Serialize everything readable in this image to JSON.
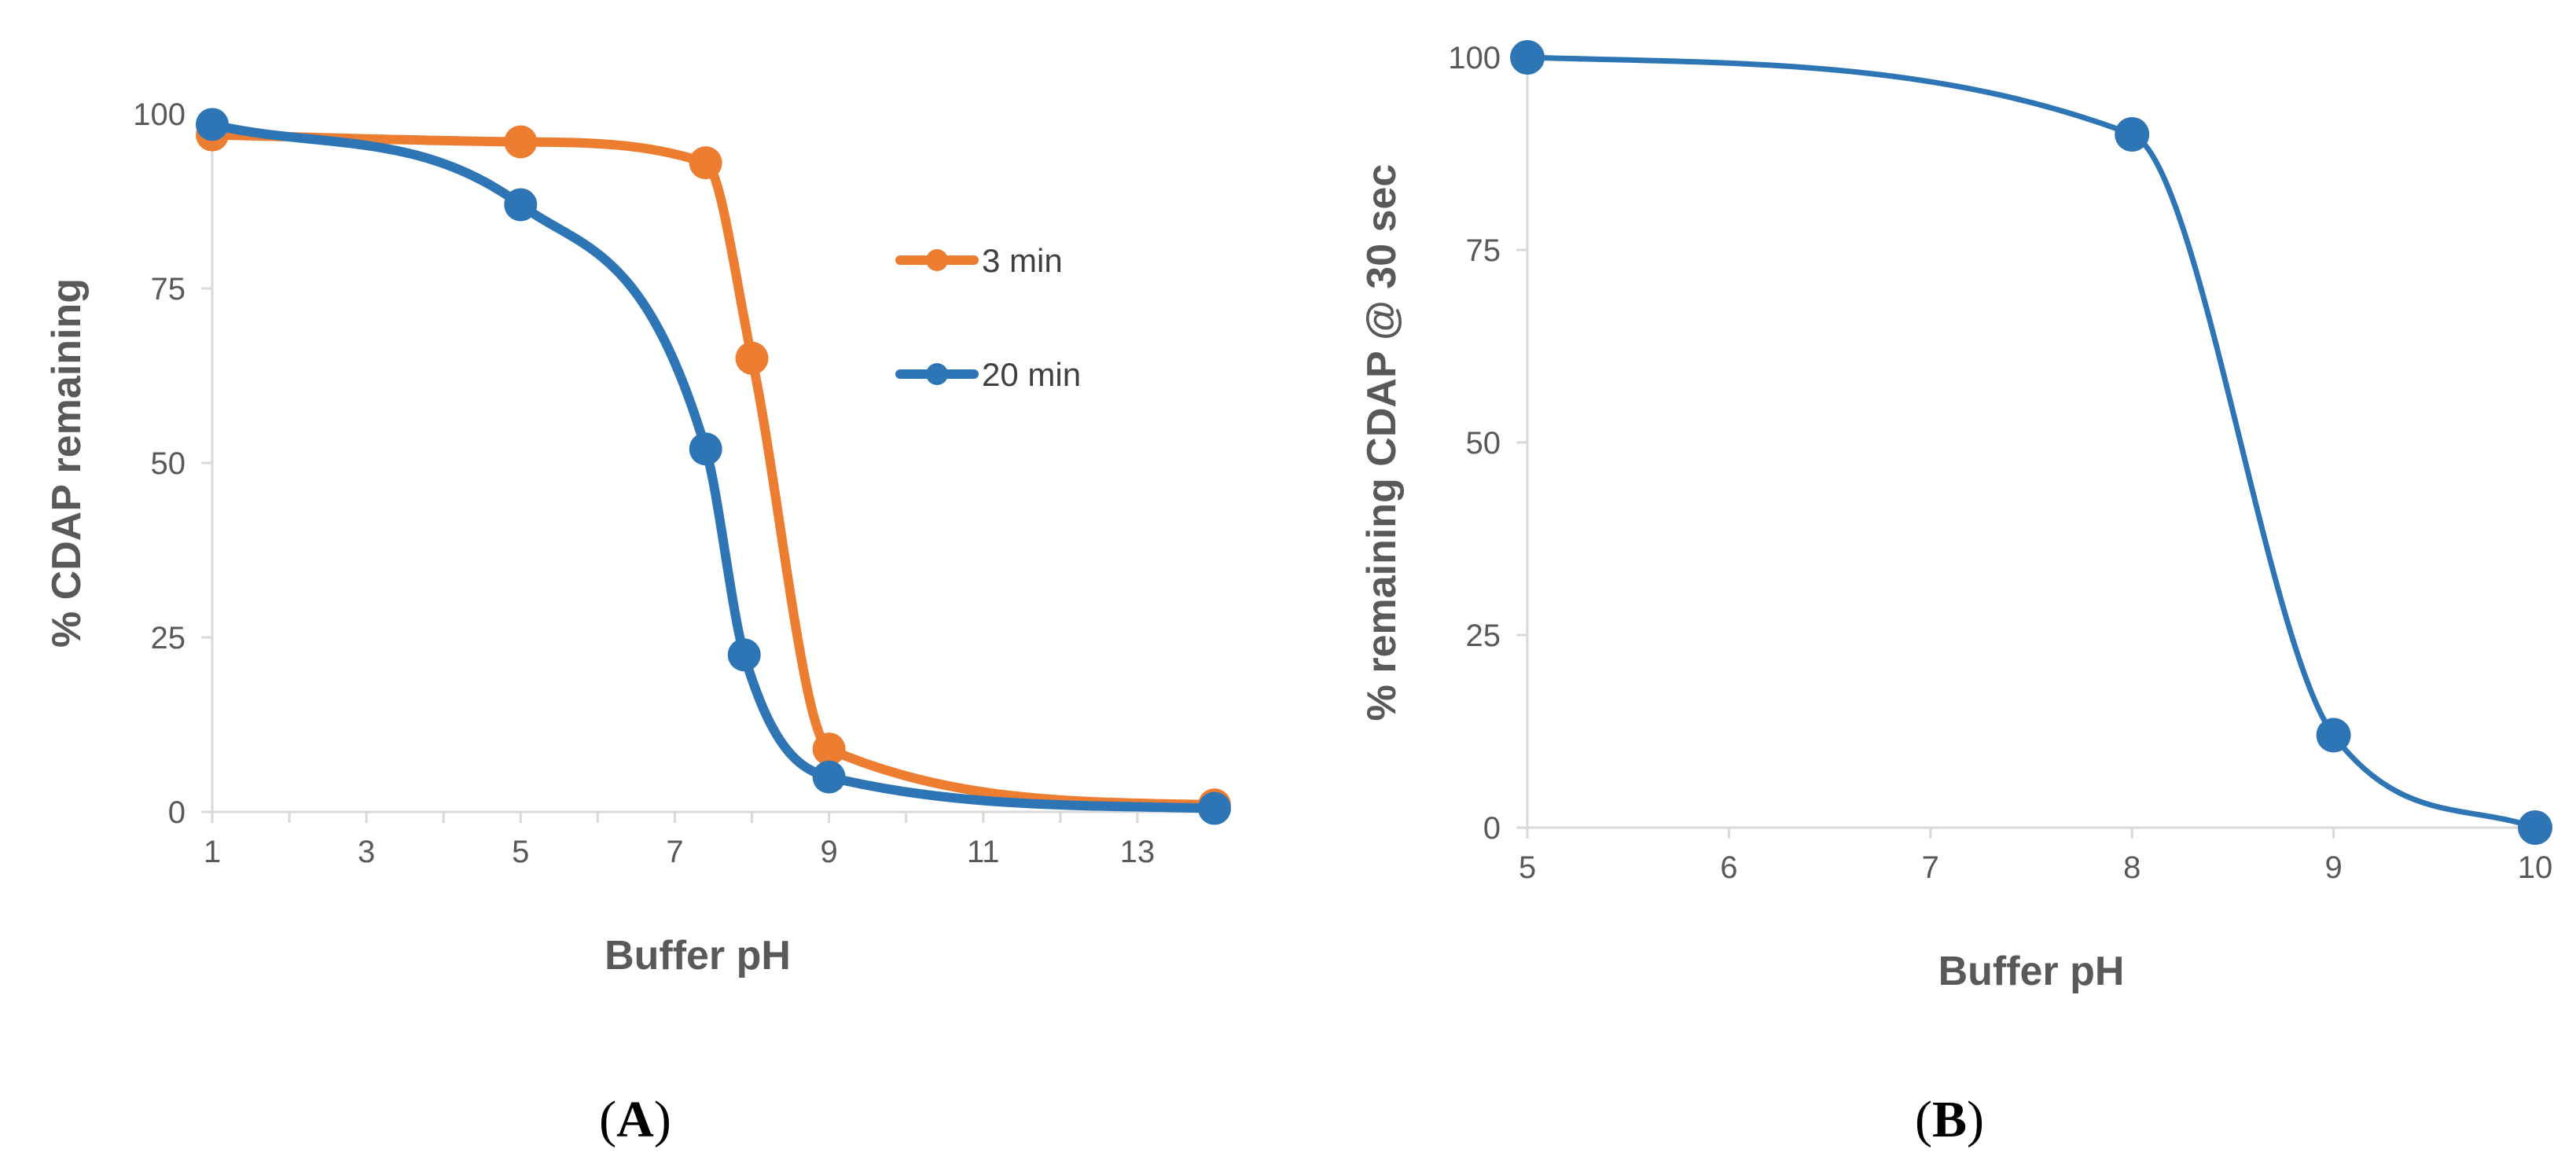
{
  "chart_data": [
    {
      "type": "line",
      "panel_label": "A",
      "xlabel": "Buffer pH",
      "ylabel": "% CDAP remaining",
      "xlim": [
        1,
        14
      ],
      "ylim": [
        0,
        100
      ],
      "xticks": [
        1,
        3,
        5,
        7,
        9,
        11,
        13
      ],
      "yticks": [
        0,
        25,
        50,
        75,
        100
      ],
      "grid": false,
      "legend_position": "right",
      "series": [
        {
          "name": "3 min",
          "color": "#ed7d31",
          "x": [
            1,
            5,
            7.4,
            8,
            9,
            14
          ],
          "y": [
            97,
            96,
            93,
            65,
            9,
            1
          ]
        },
        {
          "name": "20 min",
          "color": "#2e75b6",
          "x": [
            1,
            5,
            7.4,
            7.9,
            9,
            14
          ],
          "y": [
            98.5,
            87,
            52,
            22.5,
            5,
            0.5
          ]
        }
      ]
    },
    {
      "type": "line",
      "panel_label": "B",
      "xlabel": "Buffer pH",
      "ylabel": "% remaining CDAP @ 30 sec",
      "xlim": [
        5,
        10
      ],
      "ylim": [
        0,
        100
      ],
      "xticks": [
        5,
        6,
        7,
        8,
        9,
        10
      ],
      "yticks": [
        0,
        25,
        50,
        75,
        100
      ],
      "grid": false,
      "series": [
        {
          "color": "#2e75b6",
          "x": [
            5,
            8,
            9,
            10
          ],
          "y": [
            100,
            90,
            12,
            0
          ]
        }
      ]
    }
  ]
}
